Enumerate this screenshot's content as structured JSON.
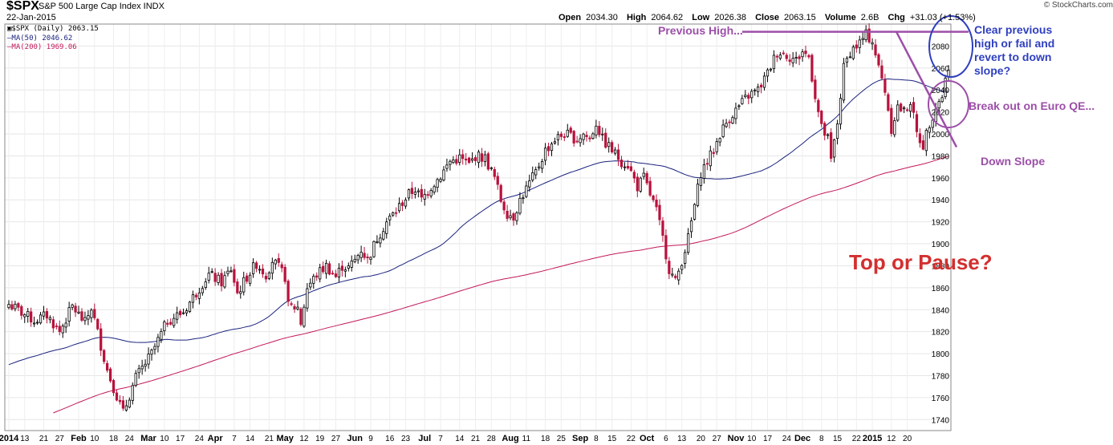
{
  "header": {
    "symbol": "$SPX",
    "index_name": "S&P 500 Large Cap Index INDX",
    "date": "22-Jan-2015",
    "ohlc": {
      "open_label": "Open",
      "open": "2034.30",
      "high_label": "High",
      "high": "2064.62",
      "low_label": "Low",
      "low": "2026.38",
      "close_label": "Close",
      "close": "2063.15",
      "volume_label": "Volume",
      "volume": "2.6B",
      "chg_label": "Chg",
      "chg": "+31.03 (+1.53%)"
    },
    "source": "© StockCharts.com"
  },
  "legend": {
    "price": "$SPX (Daily) 2063.15",
    "ma50": "MA(50) 2046.62",
    "ma200": "MA(200) 1969.06"
  },
  "annotations": {
    "previous_high": "Previous High...",
    "clear_previous": "Clear previous\nhigh or fail and\nrevert to down\nslope?",
    "break_out": "Break out on Euro QE...",
    "down_slope": "Down Slope",
    "top_or_pause": "Top or Pause?"
  },
  "colors": {
    "up": "#000000",
    "down": "#b8123c",
    "ma50": "#1a237e",
    "ma200": "#c2185b",
    "annotation_purple": "#9c4fa8",
    "annotation_blue": "#2f3fbf",
    "annotation_red": "#d32f2f"
  },
  "chart_data": {
    "type": "candlestick",
    "title": "$SPX S&P 500 Large Cap Index INDX",
    "ylim": [
      1730,
      2100
    ],
    "y_ticks": [
      1740,
      1760,
      1780,
      1800,
      1820,
      1840,
      1860,
      1880,
      1900,
      1920,
      1940,
      1960,
      1980,
      2000,
      2020,
      2040,
      2060,
      2080
    ],
    "grid": true,
    "x_tick_labels": [
      "2014",
      "13",
      "21",
      "27",
      "Feb",
      "10",
      "18",
      "24",
      "Mar",
      "10",
      "17",
      "24",
      "Apr",
      "7",
      "14",
      "21",
      "May",
      "12",
      "19",
      "27",
      "Jun",
      "9",
      "16",
      "23",
      "Jul",
      "7",
      "14",
      "21",
      "28",
      "Aug",
      "11",
      "18",
      "25",
      "Sep",
      "8",
      "15",
      "22",
      "Oct",
      "6",
      "13",
      "20",
      "27",
      "Nov",
      "10",
      "17",
      "24",
      "Dec",
      "8",
      "15",
      "22",
      "2015",
      "12",
      "20"
    ],
    "series_path": [
      [
        0,
        1845
      ],
      [
        8,
        1830
      ],
      [
        12,
        1835
      ],
      [
        16,
        1820
      ],
      [
        20,
        1843
      ],
      [
        24,
        1828
      ],
      [
        26,
        1842
      ],
      [
        31,
        1785
      ],
      [
        36,
        1746
      ],
      [
        40,
        1778
      ],
      [
        45,
        1800
      ],
      [
        50,
        1830
      ],
      [
        55,
        1838
      ],
      [
        60,
        1860
      ],
      [
        63,
        1872
      ],
      [
        67,
        1865
      ],
      [
        70,
        1877
      ],
      [
        72,
        1855
      ],
      [
        75,
        1870
      ],
      [
        78,
        1882
      ],
      [
        81,
        1872
      ],
      [
        83,
        1885
      ],
      [
        85,
        1878
      ],
      [
        87,
        1870
      ],
      [
        88,
        1843
      ],
      [
        91,
        1842
      ],
      [
        92,
        1828
      ],
      [
        94,
        1860
      ],
      [
        97,
        1872
      ],
      [
        100,
        1880
      ],
      [
        103,
        1870
      ],
      [
        105,
        1880
      ],
      [
        107,
        1878
      ],
      [
        109,
        1885
      ],
      [
        111,
        1895
      ],
      [
        113,
        1885
      ],
      [
        116,
        1905
      ],
      [
        119,
        1920
      ],
      [
        122,
        1930
      ],
      [
        124,
        1938
      ],
      [
        126,
        1945
      ],
      [
        128,
        1950
      ],
      [
        130,
        1940
      ],
      [
        133,
        1952
      ],
      [
        136,
        1962
      ],
      [
        139,
        1975
      ],
      [
        142,
        1978
      ],
      [
        145,
        1972
      ],
      [
        147,
        1980
      ],
      [
        150,
        1978
      ],
      [
        153,
        1960
      ],
      [
        155,
        1940
      ],
      [
        157,
        1928
      ],
      [
        159,
        1925
      ],
      [
        161,
        1940
      ],
      [
        163,
        1950
      ],
      [
        166,
        1965
      ],
      [
        169,
        1985
      ],
      [
        172,
        1995
      ],
      [
        175,
        2000
      ],
      [
        177,
        1998
      ],
      [
        179,
        1995
      ],
      [
        181,
        2000
      ],
      [
        183,
        1995
      ],
      [
        185,
        2010
      ],
      [
        187,
        1995
      ],
      [
        190,
        1985
      ],
      [
        193,
        1975
      ],
      [
        195,
        1972
      ],
      [
        198,
        1952
      ],
      [
        200,
        1960
      ],
      [
        202,
        1945
      ],
      [
        204,
        1930
      ],
      [
        206,
        1905
      ],
      [
        208,
        1877
      ],
      [
        210,
        1865
      ],
      [
        212,
        1885
      ],
      [
        214,
        1905
      ],
      [
        216,
        1935
      ],
      [
        218,
        1965
      ],
      [
        220,
        1975
      ],
      [
        222,
        1985
      ],
      [
        224,
        2000
      ],
      [
        227,
        2015
      ],
      [
        230,
        2025
      ],
      [
        233,
        2035
      ],
      [
        236,
        2040
      ],
      [
        239,
        2055
      ],
      [
        242,
        2075
      ],
      [
        245,
        2072
      ],
      [
        248,
        2067
      ],
      [
        250,
        2075
      ],
      [
        252,
        2070
      ],
      [
        254,
        2035
      ],
      [
        256,
        2005
      ],
      [
        258,
        1995
      ],
      [
        259,
        1975
      ],
      [
        261,
        2010
      ],
      [
        263,
        2060
      ],
      [
        265,
        2075
      ],
      [
        268,
        2083
      ],
      [
        270,
        2090
      ],
      [
        272,
        2085
      ],
      [
        274,
        2060
      ],
      [
        276,
        2040
      ],
      [
        278,
        2005
      ],
      [
        280,
        2025
      ],
      [
        282,
        2020
      ],
      [
        284,
        2030
      ],
      [
        286,
        2000
      ],
      [
        288,
        1990
      ],
      [
        290,
        2010
      ],
      [
        292,
        2025
      ],
      [
        294,
        2035
      ],
      [
        296,
        2063
      ]
    ],
    "ma50": {
      "name": "MA(50) 2046.62"
    },
    "ma200": {
      "name": "MA(200) 1969.06"
    }
  }
}
